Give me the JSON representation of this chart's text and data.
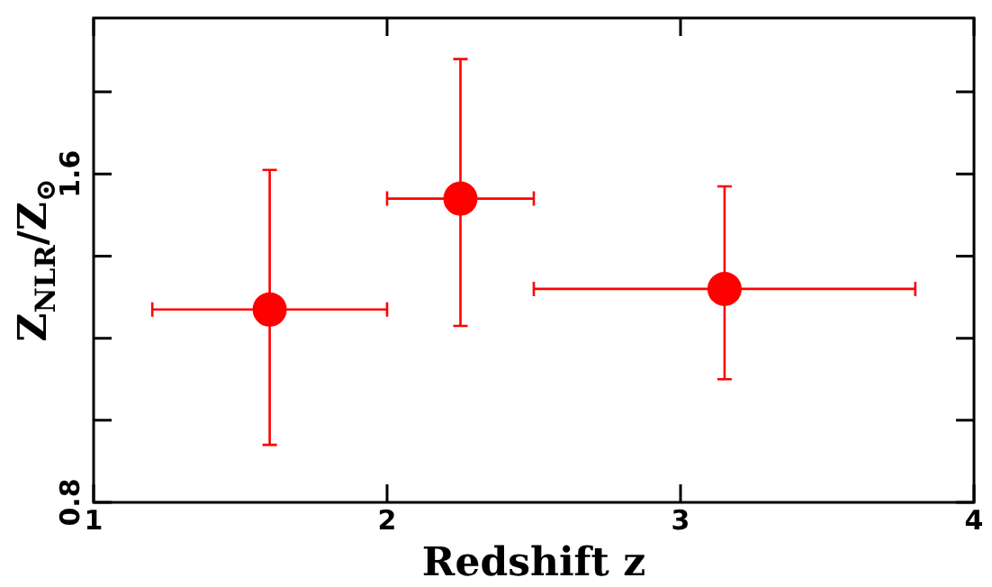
{
  "chart_data": {
    "type": "scatter",
    "xlabel": "Redshift z",
    "ylabel": "Z$_{NLR}$/Z$_{⊙}$",
    "x": [
      1.6,
      2.25,
      3.15
    ],
    "series": [
      {
        "color": "#ff0000",
        "values": [
          1.27,
          1.54,
          1.32
        ],
        "errors": [
          [
            0.94,
            1.61
          ],
          [
            1.23,
            1.88
          ],
          [
            1.1,
            1.57
          ]
        ],
        "xerrors": [
          [
            1.2,
            2.0
          ],
          [
            2.0,
            2.5
          ],
          [
            2.5,
            3.8
          ]
        ]
      }
    ],
    "xlim": [
      1,
      4
    ],
    "xticks": [
      1,
      2,
      3,
      4
    ],
    "ylim": [
      0.8,
      1.98
    ],
    "yticks": [
      0.8,
      {
        "value": 1.0,
        "label": null
      },
      {
        "value": 1.2,
        "label": null
      },
      {
        "value": 1.4,
        "label": null
      },
      1.6,
      {
        "value": 1.8,
        "label": null
      }
    ],
    "marker": "circle",
    "grid": false,
    "legend": false
  }
}
